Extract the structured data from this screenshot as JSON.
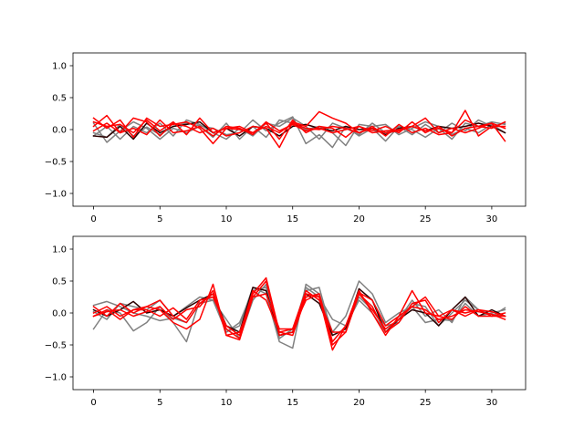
{
  "chart_data": [
    {
      "type": "line",
      "xlim": [
        -1.55,
        32.55
      ],
      "ylim": [
        -1.2,
        1.2
      ],
      "x_ticks": [
        0,
        5,
        10,
        15,
        20,
        25,
        30
      ],
      "x_tick_labels": [
        "0",
        "5",
        "10",
        "15",
        "20",
        "25",
        "30"
      ],
      "y_ticks": [
        1.0,
        0.5,
        0.0,
        -0.5,
        -1.0
      ],
      "y_tick_labels": [
        "1.0",
        "0.5",
        "0.0",
        "−0.5",
        "−1.0"
      ],
      "grid": false,
      "x": [
        0,
        1,
        2,
        3,
        4,
        5,
        6,
        7,
        8,
        9,
        10,
        11,
        12,
        13,
        14,
        15,
        16,
        17,
        18,
        19,
        20,
        21,
        22,
        23,
        24,
        25,
        26,
        27,
        28,
        29,
        30,
        31
      ],
      "series": [
        {
          "color": "#808080",
          "alpha": 1.0,
          "values": [
            -0.05,
            -0.12,
            0.08,
            -0.1,
            0.04,
            -0.08,
            0.05,
            0.1,
            0.06,
            0.02,
            -0.08,
            -0.05,
            0.15,
            -0.02,
            0.1,
            0.2,
            -0.22,
            -0.08,
            -0.28,
            0.05,
            -0.1,
            0.02,
            -0.18,
            0.05,
            0.0,
            -0.12,
            0.02,
            -0.15,
            0.1,
            0.05,
            0.12,
            0.08
          ]
        },
        {
          "color": "#808080",
          "alpha": 1.0,
          "values": [
            0.1,
            -0.2,
            -0.02,
            0.12,
            0.02,
            -0.15,
            0.02,
            -0.05,
            0.05,
            -0.12,
            0.1,
            -0.15,
            0.05,
            -0.12,
            0.15,
            0.1,
            0.0,
            0.05,
            -0.05,
            -0.25,
            0.08,
            0.05,
            0.08,
            -0.08,
            0.02,
            0.12,
            0.05,
            -0.08,
            0.02,
            -0.05,
            0.08,
            -0.05
          ]
        },
        {
          "color": "#808080",
          "alpha": 1.0,
          "values": [
            -0.1,
            0.05,
            -0.15,
            0.05,
            -0.05,
            0.1,
            -0.1,
            0.15,
            0.08,
            -0.05,
            -0.15,
            0.02,
            -0.1,
            0.1,
            0.05,
            0.18,
            0.05,
            -0.15,
            0.1,
            0.02,
            -0.08,
            0.1,
            -0.05,
            0.05,
            -0.08,
            0.08,
            -0.05,
            0.1,
            -0.02,
            0.15,
            0.05,
            0.1
          ]
        },
        {
          "color": "#2b0000",
          "alpha": 1.0,
          "values": [
            -0.1,
            -0.12,
            0.05,
            -0.15,
            0.1,
            -0.05,
            0.05,
            0.08,
            0.12,
            -0.05,
            0.02,
            -0.1,
            0.05,
            0.02,
            -0.1,
            0.05,
            0.08,
            0.02,
            -0.02,
            0.05,
            0.0,
            0.02,
            -0.08,
            0.02,
            0.05,
            -0.02,
            0.05,
            0.02,
            0.05,
            0.1,
            0.05,
            -0.05
          ]
        },
        {
          "color": "#ff0000",
          "alpha": 1.0,
          "values": [
            0.18,
            0.02,
            0.15,
            -0.12,
            0.18,
            0.05,
            0.08,
            0.12,
            0.02,
            -0.22,
            0.02,
            0.0,
            -0.05,
            0.05,
            -0.05,
            0.1,
            0.02,
            0.0,
            0.05,
            0.02,
            -0.05,
            0.02,
            -0.05,
            -0.02,
            0.05,
            0.18,
            -0.05,
            0.02,
            -0.05,
            0.02,
            0.1,
            -0.18
          ]
        },
        {
          "color": "#ff0000",
          "alpha": 1.0,
          "values": [
            0.05,
            0.22,
            -0.05,
            0.18,
            0.12,
            -0.1,
            0.1,
            0.05,
            -0.05,
            0.02,
            -0.1,
            -0.05,
            0.05,
            0.02,
            -0.28,
            0.12,
            0.05,
            0.28,
            0.18,
            0.1,
            -0.05,
            0.05,
            -0.1,
            0.08,
            -0.05,
            0.02,
            -0.08,
            -0.05,
            0.3,
            -0.1,
            0.05,
            0.05
          ]
        },
        {
          "color": "#ff0000",
          "alpha": 1.0,
          "values": [
            0.12,
            0.05,
            0.08,
            -0.05,
            0.15,
            -0.02,
            0.12,
            -0.08,
            0.18,
            -0.05,
            0.02,
            0.05,
            -0.05,
            0.1,
            -0.15,
            0.15,
            -0.05,
            0.05,
            0.02,
            -0.12,
            0.05,
            -0.02,
            0.05,
            -0.05,
            0.12,
            -0.05,
            0.05,
            -0.1,
            0.02,
            0.05,
            0.02,
            0.12
          ]
        },
        {
          "color": "#ff0000",
          "alpha": 1.0,
          "values": [
            -0.02,
            0.1,
            -0.05,
            0.02,
            -0.08,
            0.15,
            -0.05,
            -0.02,
            0.05,
            -0.1,
            0.05,
            0.02,
            -0.08,
            0.12,
            -0.02,
            0.08,
            -0.02,
            0.02,
            -0.05,
            0.0,
            0.05,
            -0.05,
            -0.02,
            0.0,
            0.05,
            -0.02,
            0.02,
            -0.05,
            0.15,
            0.05,
            0.1,
            0.02
          ]
        }
      ]
    },
    {
      "type": "line",
      "xlim": [
        -1.55,
        32.55
      ],
      "ylim": [
        -1.2,
        1.2
      ],
      "x_ticks": [
        0,
        5,
        10,
        15,
        20,
        25,
        30
      ],
      "x_tick_labels": [
        "0",
        "5",
        "10",
        "15",
        "20",
        "25",
        "30"
      ],
      "y_ticks": [
        1.0,
        0.5,
        0.0,
        -0.5,
        -1.0
      ],
      "y_tick_labels": [
        "1.0",
        "0.5",
        "0.0",
        "−0.5",
        "−1.0"
      ],
      "grid": false,
      "x": [
        0,
        1,
        2,
        3,
        4,
        5,
        6,
        7,
        8,
        9,
        10,
        11,
        12,
        13,
        14,
        15,
        16,
        17,
        18,
        19,
        20,
        21,
        22,
        23,
        24,
        25,
        26,
        27,
        28,
        29,
        30,
        31
      ],
      "series": [
        {
          "color": "#808080",
          "alpha": 1.0,
          "values": [
            -0.25,
            0.05,
            0.0,
            -0.28,
            -0.15,
            0.1,
            -0.15,
            -0.45,
            0.2,
            0.25,
            -0.3,
            -0.2,
            0.4,
            0.3,
            -0.45,
            -0.55,
            0.45,
            0.3,
            -0.3,
            -0.05,
            0.5,
            0.3,
            -0.15,
            0.0,
            0.1,
            -0.15,
            -0.1,
            -0.12,
            0.15,
            -0.05,
            0.0,
            0.05
          ]
        },
        {
          "color": "#808080",
          "alpha": 1.0,
          "values": [
            0.12,
            0.18,
            0.1,
            0.0,
            -0.05,
            -0.12,
            -0.08,
            -0.15,
            0.15,
            0.2,
            -0.1,
            -0.4,
            0.2,
            0.45,
            -0.35,
            -0.3,
            0.4,
            0.25,
            -0.1,
            -0.2,
            0.2,
            0.0,
            -0.3,
            -0.1,
            0.2,
            -0.05,
            0.05,
            -0.15,
            0.25,
            0.05,
            -0.02,
            -0.05
          ]
        },
        {
          "color": "#808080",
          "alpha": 1.0,
          "values": [
            0.02,
            -0.1,
            0.15,
            0.1,
            0.05,
            0.2,
            -0.05,
            0.1,
            0.25,
            0.2,
            -0.3,
            -0.15,
            0.35,
            0.4,
            -0.4,
            -0.25,
            0.35,
            0.4,
            -0.35,
            -0.25,
            0.25,
            0.05,
            -0.2,
            -0.15,
            0.15,
            0.1,
            -0.2,
            0.0,
            0.2,
            0.05,
            -0.05,
            0.08
          ]
        },
        {
          "color": "#2b0000",
          "alpha": 1.0,
          "values": [
            0.05,
            -0.05,
            0.05,
            0.18,
            0.0,
            0.05,
            -0.05,
            0.08,
            0.2,
            0.3,
            -0.2,
            -0.3,
            0.4,
            0.35,
            -0.35,
            -0.3,
            0.3,
            0.15,
            -0.35,
            -0.25,
            0.38,
            0.2,
            -0.3,
            -0.1,
            0.05,
            0.0,
            -0.2,
            0.05,
            0.25,
            -0.05,
            0.05,
            -0.05
          ]
        },
        {
          "color": "#ff0000",
          "alpha": 1.0,
          "values": [
            -0.05,
            0.05,
            -0.1,
            0.05,
            0.1,
            0.05,
            -0.15,
            -0.25,
            -0.1,
            0.45,
            -0.35,
            -0.42,
            0.25,
            0.5,
            -0.35,
            -0.3,
            0.3,
            0.25,
            -0.58,
            -0.2,
            0.35,
            0.0,
            -0.35,
            -0.05,
            0.35,
            0.0,
            -0.05,
            0.05,
            -0.05,
            0.05,
            0.02,
            -0.05
          ]
        },
        {
          "color": "#ff0000",
          "alpha": 1.0,
          "values": [
            0.1,
            -0.05,
            0.15,
            0.0,
            0.1,
            0.2,
            -0.05,
            -0.15,
            0.15,
            0.3,
            -0.25,
            -0.4,
            0.3,
            0.55,
            -0.3,
            -0.35,
            0.25,
            0.3,
            -0.5,
            -0.3,
            0.3,
            0.1,
            -0.3,
            -0.15,
            0.15,
            0.2,
            -0.15,
            0.05,
            0.0,
            0.05,
            -0.05,
            0.0
          ]
        },
        {
          "color": "#ff0000",
          "alpha": 1.0,
          "values": [
            0.0,
            0.1,
            -0.05,
            0.05,
            0.05,
            -0.05,
            0.08,
            -0.1,
            0.2,
            0.25,
            -0.2,
            -0.35,
            0.35,
            0.2,
            -0.3,
            -0.25,
            0.35,
            0.2,
            -0.3,
            -0.3,
            0.3,
            0.05,
            -0.25,
            -0.1,
            0.1,
            0.25,
            -0.05,
            -0.1,
            0.1,
            -0.05,
            -0.05,
            -0.05
          ]
        },
        {
          "color": "#ff0000",
          "alpha": 1.0,
          "values": [
            -0.05,
            0.02,
            0.05,
            -0.05,
            0.02,
            0.1,
            -0.1,
            0.05,
            0.1,
            0.35,
            -0.35,
            -0.3,
            0.25,
            0.3,
            -0.25,
            -0.25,
            0.2,
            0.3,
            -0.45,
            -0.2,
            0.32,
            0.2,
            -0.2,
            -0.05,
            0.1,
            0.05,
            -0.1,
            -0.05,
            0.05,
            0.02,
            -0.02,
            -0.1
          ]
        }
      ]
    }
  ]
}
